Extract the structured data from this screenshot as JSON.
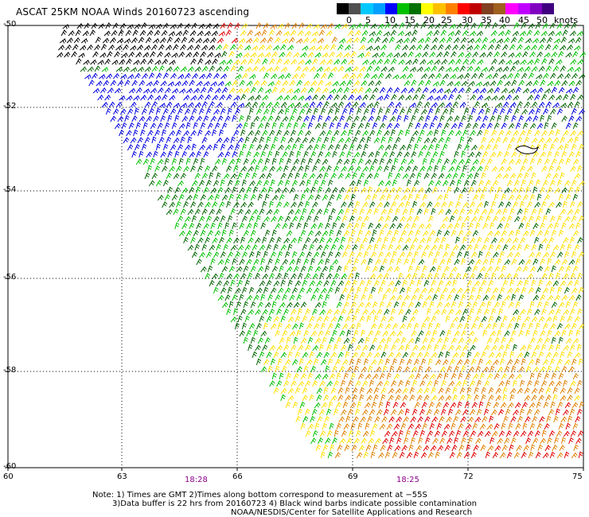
{
  "title": "ASCAT 25KM NOAA Winds 20160723 ascending",
  "colorbar": {
    "unit_label": "knots",
    "colors": [
      "#000000",
      "#505050",
      "#00c8ff",
      "#00a0ff",
      "#0000ff",
      "#00c000",
      "#007000",
      "#ffff00",
      "#ffc000",
      "#ff8000",
      "#ff0000",
      "#c00000",
      "#804020",
      "#a06020",
      "#ff00ff",
      "#c000ff",
      "#8000c0",
      "#400080"
    ],
    "labels": [
      "0",
      "5",
      "10",
      "15",
      "20",
      "25",
      "30",
      "35",
      "40",
      "45",
      "50"
    ]
  },
  "map": {
    "lat_labels": [
      "-50",
      "-52",
      "-54",
      "-56",
      "-58",
      "-60"
    ],
    "lon_labels": [
      "60",
      "63",
      "66",
      "69",
      "72",
      "75"
    ],
    "lat_range": [
      -60,
      -50
    ],
    "lon_range": [
      60,
      75
    ],
    "gridlines": true
  },
  "pass_times": [
    "18:28",
    "18:25"
  ],
  "footer": {
    "line1": "Note: 1) Times are GMT 2)Times along bottom correspond to measurement at −55S",
    "line2": "3)Data buffer is 22 hrs from 20160723 4) Black wind barbs indicate possible contamination",
    "line3": "NOAA/NESDIS/Center for Satellite Applications and Research"
  },
  "barb_colors": {
    "contaminated": "#000000",
    "blue": "#0000e0",
    "light_green": "#00c000",
    "dark_green": "#006400",
    "yellow": "#ffe000",
    "orange": "#e08000",
    "red": "#e00000"
  }
}
